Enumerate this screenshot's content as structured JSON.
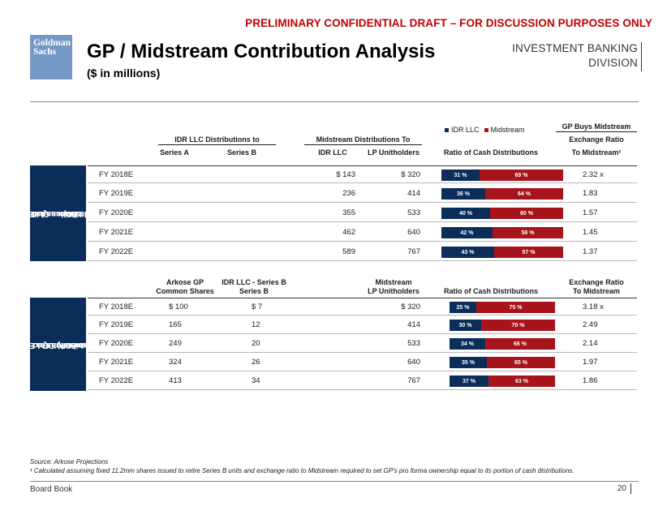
{
  "banner": "PRELIMINARY CONFIDENTIAL DRAFT – FOR DISCUSSION PURPOSES ONLY",
  "logo": {
    "line1": "Goldman",
    "line2": "Sachs"
  },
  "title": "GP / Midstream Contribution Analysis",
  "subtitle": "($ in millions)",
  "division": {
    "line1": "INVESTMENT BANKING",
    "line2": "DIVISION"
  },
  "colors": {
    "idr": "#0b2d5a",
    "midstream": "#a8141c",
    "side_panel": "#0b2d5a",
    "logo": "#7399c6",
    "banner": "#c00000"
  },
  "legend": {
    "idr": "IDR LLC",
    "midstream": "Midstream"
  },
  "section1": {
    "side_label": [
      "Status Quo Cash",
      "Distributions to Equity",
      "(Midstream and IDR",
      "LLC)"
    ],
    "group_idr": "IDR LLC Distributions to",
    "group_mid": "Midstream Distributions To",
    "group_gp": "GP Buys Midstream",
    "col_series_a": "Series A",
    "col_series_b": "Series B",
    "col_idr_llc": "IDR LLC",
    "col_lp": "LP Unitholders",
    "col_ratio": "Ratio of Cash Distributions",
    "col_exch1": "Exchange Ratio",
    "col_exch2": "To Midstream¹",
    "rows": [
      {
        "year": "FY 2018E",
        "series_a": "",
        "series_b": "",
        "idr_llc": "$ 143",
        "lp": "$ 320",
        "idr_pct": 31,
        "mid_pct": 69,
        "idr_label": "31 %",
        "mid_label": "69 %",
        "exchange": "2.32 x"
      },
      {
        "year": "FY 2019E",
        "series_a": "",
        "series_b": "",
        "idr_llc": "236",
        "lp": "414",
        "idr_pct": 36,
        "mid_pct": 64,
        "idr_label": "36 %",
        "mid_label": "64 %",
        "exchange": "1.83"
      },
      {
        "year": "FY 2020E",
        "series_a": "",
        "series_b": "",
        "idr_llc": "355",
        "lp": "533",
        "idr_pct": 40,
        "mid_pct": 60,
        "idr_label": "40 %",
        "mid_label": "60 %",
        "exchange": "1.57"
      },
      {
        "year": "FY 2021E",
        "series_a": "",
        "series_b": "",
        "idr_llc": "462",
        "lp": "640",
        "idr_pct": 42,
        "mid_pct": 58,
        "idr_label": "42 %",
        "mid_label": "58 %",
        "exchange": "1.45"
      },
      {
        "year": "FY 2022E",
        "series_a": "",
        "series_b": "",
        "idr_llc": "589",
        "lp": "767",
        "idr_pct": 43,
        "mid_pct": 57,
        "idr_label": "43 %",
        "mid_label": "57 %",
        "exchange": "1.37"
      }
    ]
  },
  "section2": {
    "side_label": [
      "Status Quo Cash",
      "Distributions to Equity",
      "(Midstream, IDR LLC,",
      "and GP)"
    ],
    "col_arkose1": "Arkose GP",
    "col_arkose2": "Common Shares",
    "col_idrb1": "IDR LLC - Series B",
    "col_idrb2": "Series B",
    "col_mid1": "Midstream",
    "col_mid2": "LP Unitholders",
    "col_ratio": "Ratio of Cash Distributions",
    "col_exch1": "Exchange Ratio",
    "col_exch2": "To Midstream",
    "rows": [
      {
        "year": "FY 2018E",
        "arkose": "$ 100",
        "series_b": "$ 7",
        "lp": "$ 320",
        "idr_pct": 25,
        "mid_pct": 75,
        "idr_label": "25 %",
        "mid_label": "75 %",
        "exchange": "3.18 x"
      },
      {
        "year": "FY 2019E",
        "arkose": "165",
        "series_b": "12",
        "lp": "414",
        "idr_pct": 30,
        "mid_pct": 70,
        "idr_label": "30 %",
        "mid_label": "70 %",
        "exchange": "2.49"
      },
      {
        "year": "FY 2020E",
        "arkose": "249",
        "series_b": "20",
        "lp": "533",
        "idr_pct": 34,
        "mid_pct": 66,
        "idr_label": "34 %",
        "mid_label": "66 %",
        "exchange": "2.14"
      },
      {
        "year": "FY 2021E",
        "arkose": "324",
        "series_b": "26",
        "lp": "640",
        "idr_pct": 35,
        "mid_pct": 65,
        "idr_label": "35 %",
        "mid_label": "65 %",
        "exchange": "1.97"
      },
      {
        "year": "FY 2022E",
        "arkose": "413",
        "series_b": "34",
        "lp": "767",
        "idr_pct": 37,
        "mid_pct": 63,
        "idr_label": "37 %",
        "mid_label": "63 %",
        "exchange": "1.86"
      }
    ]
  },
  "source": "Source: Arkose Projections",
  "footnote": "¹ Calculated assuming fixed 11.2mm shares issued to retire Series B units and exchange ratio to Midstream required to set GP's pro forma ownership equal to its portion of cash distributions.",
  "footer": {
    "left": "Board Book",
    "page": "20"
  }
}
